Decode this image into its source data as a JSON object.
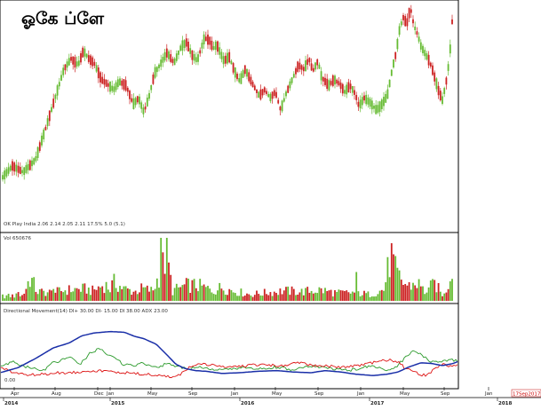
{
  "chart_data": {
    "type": "candlestick",
    "title": "ஓகே ப்ளே",
    "date_stamp": "17Sep2017",
    "colors": {
      "up": "#66bb33",
      "down": "#cc2222",
      "frame": "#000000",
      "plus_di": "#2b9a2b",
      "minus_di": "#dd1111",
      "adx": "#1a2fa8"
    },
    "panels": {
      "price": {
        "caption": "OK Play India 2.06 2.14 2.05 2.11 17.5% 5.0 (5.1)",
        "ylim": [
          0,
          100
        ]
      },
      "volume": {
        "label": "Vol 650676",
        "ylim": [
          0,
          100
        ]
      },
      "dmi": {
        "label": "Directional Movement(14)  DI+ 30.00  DI- 15.00  DI 38.00  ADX 23.00",
        "zero_label": "0.00",
        "ylim": [
          0,
          100
        ]
      }
    },
    "x_axis": {
      "months": [
        "Apr",
        "Aug",
        "Dec",
        "Jan",
        "May",
        "Sep",
        "Jan",
        "May",
        "Sep",
        "Jan",
        "May",
        "Sep",
        "Jan"
      ],
      "years": [
        "2014",
        "2015",
        "2016",
        "2017",
        "2018"
      ]
    },
    "price_path": [
      [
        0,
        15
      ],
      [
        14,
        22
      ],
      [
        26,
        19
      ],
      [
        40,
        25
      ],
      [
        52,
        41
      ],
      [
        62,
        55
      ],
      [
        72,
        69
      ],
      [
        80,
        74
      ],
      [
        88,
        71
      ],
      [
        94,
        78
      ],
      [
        100,
        74
      ],
      [
        106,
        72
      ],
      [
        114,
        64
      ],
      [
        120,
        62
      ],
      [
        128,
        59
      ],
      [
        134,
        63
      ],
      [
        142,
        61
      ],
      [
        150,
        52
      ],
      [
        156,
        55
      ],
      [
        162,
        48
      ],
      [
        168,
        56
      ],
      [
        174,
        67
      ],
      [
        180,
        71
      ],
      [
        188,
        77
      ],
      [
        196,
        72
      ],
      [
        204,
        80
      ],
      [
        210,
        82
      ],
      [
        216,
        76
      ],
      [
        222,
        73
      ],
      [
        230,
        84
      ],
      [
        236,
        83
      ],
      [
        240,
        79
      ],
      [
        244,
        81
      ],
      [
        252,
        73
      ],
      [
        258,
        75
      ],
      [
        264,
        68
      ],
      [
        270,
        63
      ],
      [
        276,
        69
      ],
      [
        284,
        62
      ],
      [
        292,
        56
      ],
      [
        298,
        59
      ],
      [
        304,
        55
      ],
      [
        310,
        58
      ],
      [
        316,
        49
      ],
      [
        322,
        57
      ],
      [
        330,
        65
      ],
      [
        336,
        71
      ],
      [
        342,
        69
      ],
      [
        348,
        74
      ],
      [
        352,
        68
      ],
      [
        358,
        73
      ],
      [
        362,
        65
      ],
      [
        370,
        61
      ],
      [
        376,
        64
      ],
      [
        382,
        62
      ],
      [
        388,
        58
      ],
      [
        394,
        61
      ],
      [
        400,
        57
      ],
      [
        404,
        51
      ],
      [
        410,
        55
      ],
      [
        416,
        53
      ],
      [
        424,
        49
      ],
      [
        430,
        52
      ],
      [
        436,
        56
      ],
      [
        442,
        70
      ],
      [
        446,
        77
      ],
      [
        450,
        89
      ],
      [
        454,
        94
      ],
      [
        458,
        91
      ],
      [
        462,
        99
      ],
      [
        466,
        90
      ],
      [
        470,
        86
      ],
      [
        474,
        80
      ],
      [
        478,
        77
      ],
      [
        482,
        74
      ],
      [
        486,
        70
      ],
      [
        490,
        64
      ],
      [
        494,
        58
      ],
      [
        498,
        54
      ],
      [
        502,
        62
      ],
      [
        506,
        74
      ],
      [
        510,
        98
      ]
    ],
    "volume_path": [
      [
        0,
        10
      ],
      [
        26,
        12
      ],
      [
        34,
        52
      ],
      [
        42,
        20
      ],
      [
        60,
        18
      ],
      [
        72,
        23
      ],
      [
        84,
        25
      ],
      [
        96,
        26
      ],
      [
        104,
        22
      ],
      [
        118,
        36
      ],
      [
        124,
        26
      ],
      [
        128,
        40
      ],
      [
        140,
        26
      ],
      [
        152,
        20
      ],
      [
        160,
        27
      ],
      [
        172,
        22
      ],
      [
        188,
        98
      ],
      [
        194,
        22
      ],
      [
        210,
        34
      ],
      [
        222,
        34
      ],
      [
        240,
        22
      ],
      [
        250,
        30
      ],
      [
        262,
        22
      ],
      [
        282,
        14
      ],
      [
        300,
        18
      ],
      [
        320,
        22
      ],
      [
        340,
        20
      ],
      [
        360,
        24
      ],
      [
        380,
        17
      ],
      [
        400,
        18
      ],
      [
        416,
        14
      ],
      [
        424,
        19
      ],
      [
        432,
        24
      ],
      [
        440,
        100
      ],
      [
        446,
        60
      ],
      [
        452,
        42
      ],
      [
        460,
        32
      ],
      [
        470,
        40
      ],
      [
        478,
        20
      ],
      [
        490,
        38
      ],
      [
        496,
        18
      ],
      [
        500,
        12
      ],
      [
        506,
        46
      ],
      [
        510,
        100
      ]
    ],
    "dmi_plus_path": [
      [
        0,
        28
      ],
      [
        16,
        36
      ],
      [
        24,
        30
      ],
      [
        34,
        27
      ],
      [
        48,
        22
      ],
      [
        58,
        33
      ],
      [
        70,
        38
      ],
      [
        82,
        41
      ],
      [
        90,
        31
      ],
      [
        100,
        46
      ],
      [
        112,
        54
      ],
      [
        122,
        45
      ],
      [
        132,
        38
      ],
      [
        140,
        31
      ],
      [
        152,
        30
      ],
      [
        160,
        34
      ],
      [
        176,
        28
      ],
      [
        190,
        33
      ],
      [
        200,
        28
      ],
      [
        216,
        26
      ],
      [
        226,
        28
      ],
      [
        244,
        23
      ],
      [
        270,
        27
      ],
      [
        290,
        25
      ],
      [
        310,
        28
      ],
      [
        330,
        24
      ],
      [
        350,
        29
      ],
      [
        372,
        26
      ],
      [
        390,
        23
      ],
      [
        406,
        26
      ],
      [
        420,
        31
      ],
      [
        434,
        22
      ],
      [
        444,
        26
      ],
      [
        452,
        36
      ],
      [
        460,
        46
      ],
      [
        466,
        50
      ],
      [
        476,
        44
      ],
      [
        486,
        35
      ],
      [
        494,
        36
      ],
      [
        502,
        37
      ],
      [
        510,
        38
      ],
      [
        516,
        37
      ]
    ],
    "dmi_minus_path": [
      [
        0,
        28
      ],
      [
        10,
        22
      ],
      [
        26,
        18
      ],
      [
        36,
        17
      ],
      [
        52,
        18
      ],
      [
        64,
        20
      ],
      [
        80,
        20
      ],
      [
        100,
        23
      ],
      [
        120,
        22
      ],
      [
        140,
        20
      ],
      [
        160,
        18
      ],
      [
        180,
        16
      ],
      [
        192,
        14
      ],
      [
        200,
        15
      ],
      [
        208,
        22
      ],
      [
        216,
        30
      ],
      [
        224,
        34
      ],
      [
        234,
        31
      ],
      [
        248,
        29
      ],
      [
        260,
        28
      ],
      [
        280,
        30
      ],
      [
        296,
        32
      ],
      [
        316,
        29
      ],
      [
        336,
        34
      ],
      [
        352,
        31
      ],
      [
        368,
        29
      ],
      [
        388,
        28
      ],
      [
        404,
        30
      ],
      [
        420,
        34
      ],
      [
        430,
        37
      ],
      [
        440,
        38
      ],
      [
        450,
        34
      ],
      [
        456,
        26
      ],
      [
        466,
        22
      ],
      [
        474,
        16
      ],
      [
        480,
        17
      ],
      [
        486,
        22
      ],
      [
        494,
        28
      ],
      [
        500,
        33
      ],
      [
        506,
        29
      ],
      [
        512,
        30
      ],
      [
        516,
        31
      ]
    ],
    "dmi_adx_path": [
      [
        0,
        20
      ],
      [
        20,
        27
      ],
      [
        40,
        40
      ],
      [
        60,
        55
      ],
      [
        78,
        62
      ],
      [
        92,
        72
      ],
      [
        106,
        76
      ],
      [
        124,
        78
      ],
      [
        140,
        77
      ],
      [
        152,
        71
      ],
      [
        162,
        68
      ],
      [
        176,
        60
      ],
      [
        188,
        45
      ],
      [
        198,
        32
      ],
      [
        208,
        26
      ],
      [
        220,
        23
      ],
      [
        232,
        22
      ],
      [
        250,
        19
      ],
      [
        270,
        20
      ],
      [
        290,
        22
      ],
      [
        312,
        23
      ],
      [
        330,
        21
      ],
      [
        350,
        20
      ],
      [
        366,
        23
      ],
      [
        384,
        21
      ],
      [
        400,
        18
      ],
      [
        420,
        16
      ],
      [
        436,
        18
      ],
      [
        448,
        21
      ],
      [
        460,
        28
      ],
      [
        474,
        34
      ],
      [
        486,
        33
      ],
      [
        498,
        30
      ],
      [
        510,
        33
      ],
      [
        516,
        36
      ]
    ]
  }
}
